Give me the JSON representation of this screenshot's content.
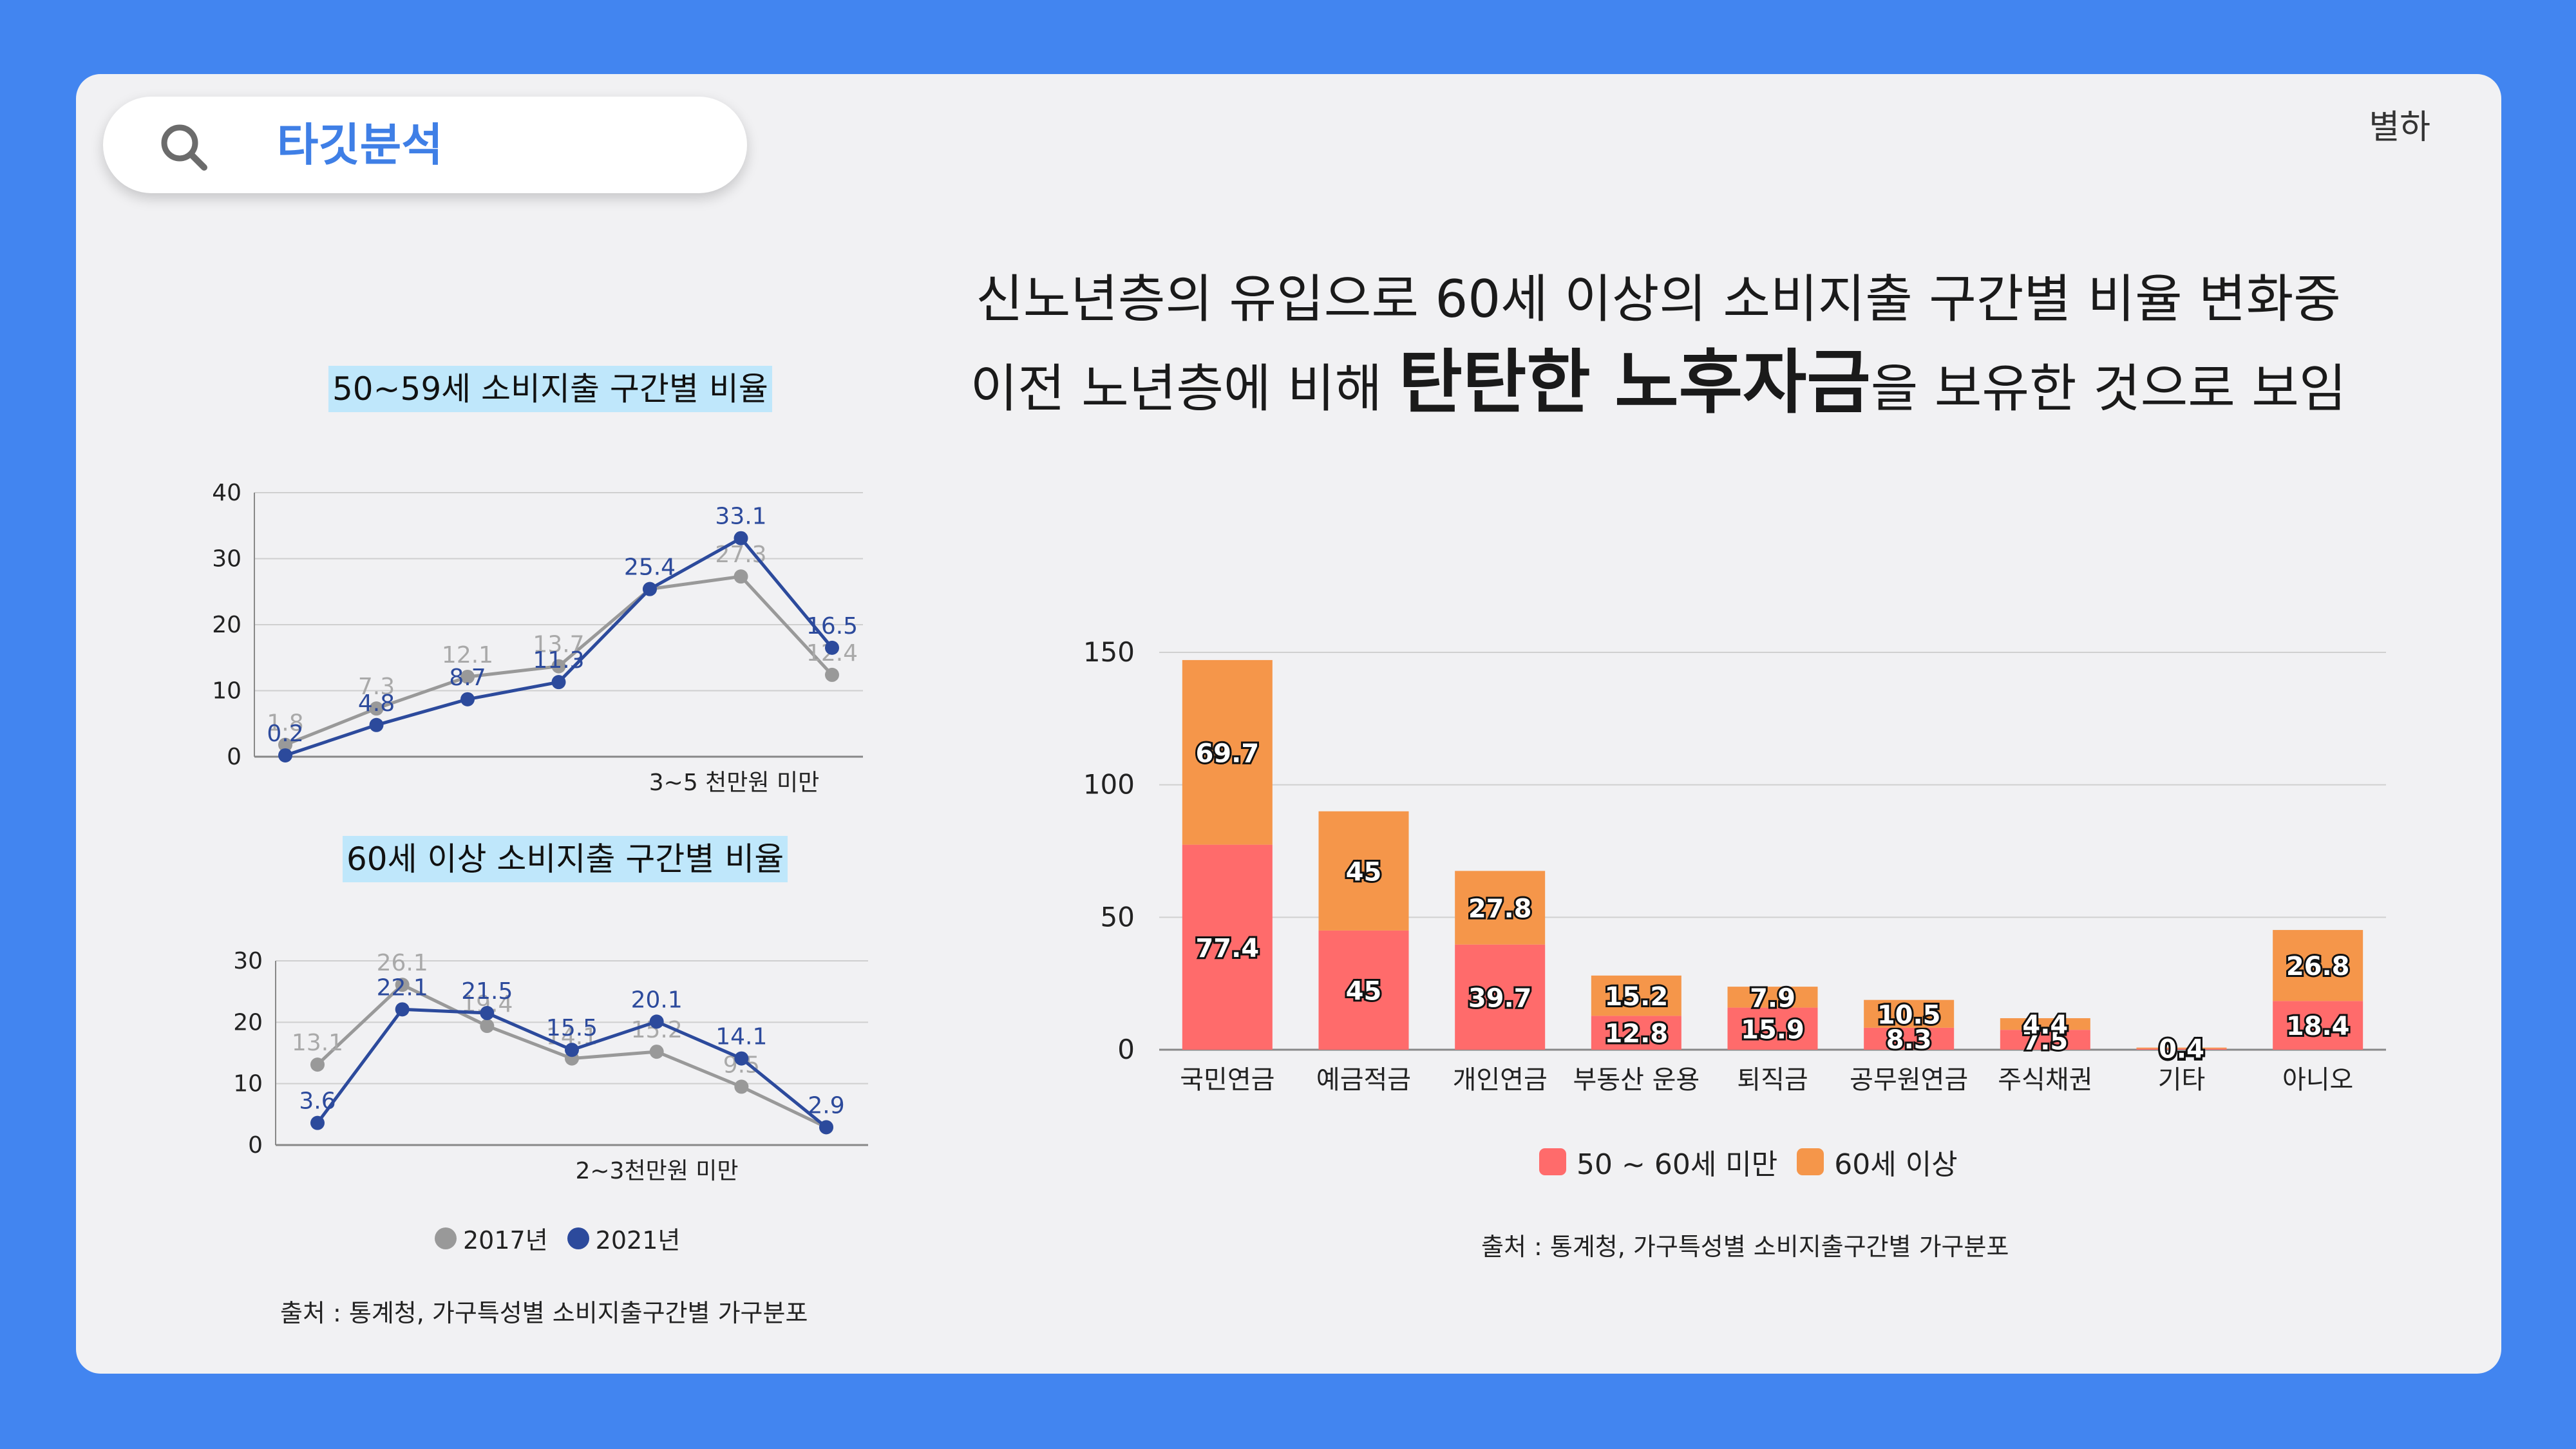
{
  "search": {
    "label": "타깃분석",
    "icon": "search-icon"
  },
  "brand": "별하",
  "headline": {
    "line1": "신노년층의 유입으로 60세 이상의 소비지출 구간별 비율 변화중",
    "line2_pre": "이전 노년층에 비해 ",
    "line2_strong": "탄탄한 노후자금",
    "line2_post": "을 보유한 것으로 보임"
  },
  "colors": {
    "accent": "#3f7fe6",
    "series_2017": "#999999",
    "series_2021": "#2c4a9c",
    "bar_a": "#ff6b6b",
    "bar_b": "#f5964a",
    "title_bg": "#bfe7fb"
  },
  "chart_data": [
    {
      "id": "line_50s",
      "type": "line",
      "title": "50~59세 소비지출 구간별 비율",
      "xlabel": "3~5 천만원 미만",
      "ylim": [
        0,
        40
      ],
      "yticks": [
        0,
        10,
        20,
        30,
        40
      ],
      "categories": [
        "1",
        "2",
        "3",
        "4",
        "5",
        "6",
        "7"
      ],
      "series": [
        {
          "name": "2017년",
          "values": [
            1.8,
            7.3,
            12.1,
            13.7,
            25.4,
            27.3,
            12.4
          ]
        },
        {
          "name": "2021년",
          "values": [
            0.2,
            4.8,
            8.7,
            11.3,
            25.4,
            33.1,
            16.5
          ]
        }
      ]
    },
    {
      "id": "line_60s",
      "type": "line",
      "title": "60세 이상 소비지출 구간별 비율",
      "xlabel": "2~3천만원 미만",
      "ylim": [
        0,
        30
      ],
      "yticks": [
        0,
        10,
        20,
        30
      ],
      "categories": [
        "1",
        "2",
        "3",
        "4",
        "5",
        "6",
        "7"
      ],
      "series": [
        {
          "name": "2017년",
          "values": [
            13.1,
            26.1,
            19.4,
            14.1,
            15.2,
            9.5,
            2.9
          ]
        },
        {
          "name": "2021년",
          "values": [
            3.6,
            22.1,
            21.5,
            15.5,
            20.1,
            14.1,
            2.9
          ]
        }
      ],
      "legend": [
        "2017년",
        "2021년"
      ],
      "source": "출처 : 통계청,  가구특성별 소비지출구간별 가구분포"
    },
    {
      "id": "bar_stack",
      "type": "bar",
      "stacked": true,
      "ylim": [
        0,
        150
      ],
      "yticks": [
        0,
        50,
        100,
        150
      ],
      "categories": [
        "국민연금",
        "예금적금",
        "개인연금",
        "부동산 운용",
        "퇴직금",
        "공무원연금",
        "주식채권",
        "기타",
        "아니오"
      ],
      "series": [
        {
          "name": "50 ~ 60세 미만",
          "values": [
            77.4,
            45,
            39.7,
            12.8,
            15.9,
            8.3,
            7.5,
            0.4,
            18.4
          ]
        },
        {
          "name": "60세 이상",
          "values": [
            69.7,
            45,
            27.8,
            15.2,
            7.9,
            10.5,
            4.4,
            0.4,
            26.8
          ]
        }
      ],
      "source": "출처 : 통계청,  가구특성별 소비지출구간별 가구분포"
    }
  ]
}
